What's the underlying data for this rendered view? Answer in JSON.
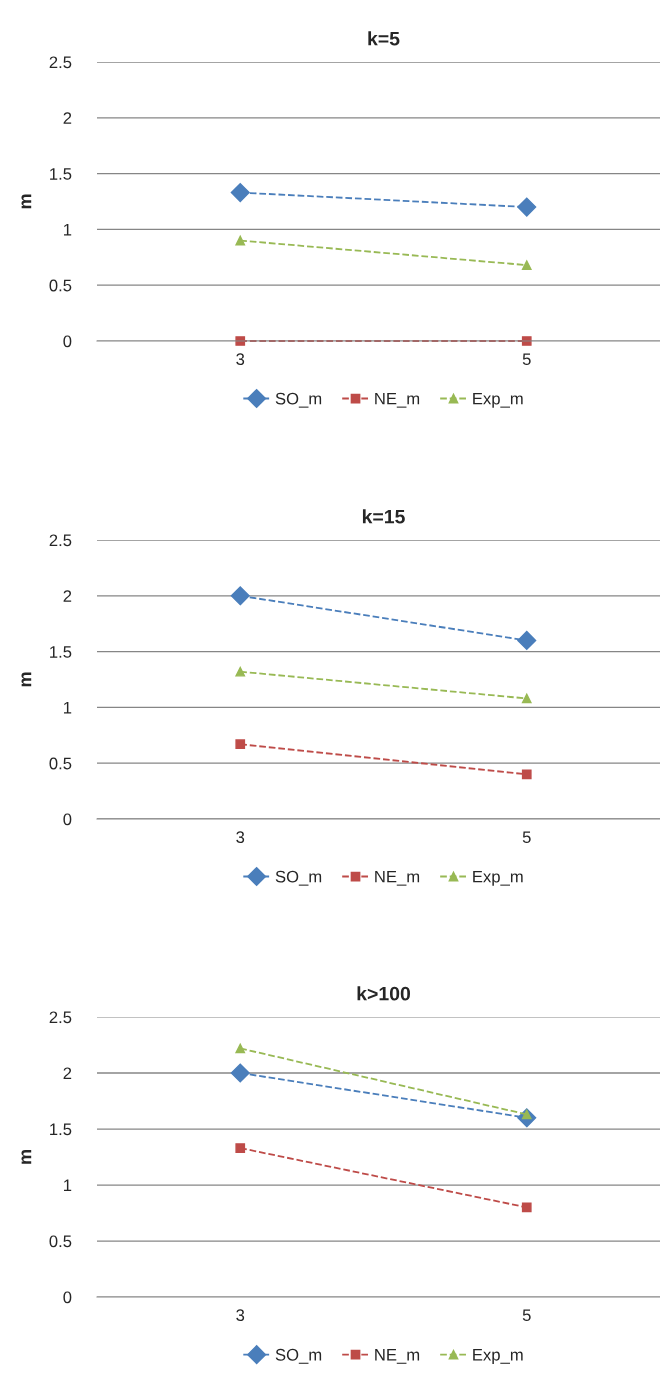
{
  "chart_data": [
    {
      "type": "line",
      "title": "k=5",
      "ylabel": "m",
      "categories": [
        "3",
        "5"
      ],
      "ylim": [
        0,
        2.5
      ],
      "yticks": [
        0,
        0.5,
        1,
        1.5,
        2,
        2.5
      ],
      "grid": "y",
      "legend": "bottom",
      "line_style": "dashed",
      "series": [
        {
          "name": "SO_m",
          "color": "#4a7ebb",
          "marker": "diamond",
          "values": [
            1.33,
            1.2
          ]
        },
        {
          "name": "NE_m",
          "color": "#be4b48",
          "marker": "square",
          "values": [
            0,
            0
          ]
        },
        {
          "name": "Exp_m",
          "color": "#98b954",
          "marker": "triangle",
          "values": [
            0.9,
            0.68
          ]
        }
      ]
    },
    {
      "type": "line",
      "title": "k=15",
      "ylabel": "m",
      "categories": [
        "3",
        "5"
      ],
      "ylim": [
        0,
        2.5
      ],
      "yticks": [
        0,
        0.5,
        1,
        1.5,
        2,
        2.5
      ],
      "grid": "y",
      "legend": "bottom",
      "line_style": "dashed",
      "series": [
        {
          "name": "SO_m",
          "color": "#4a7ebb",
          "marker": "diamond",
          "values": [
            2,
            1.6
          ]
        },
        {
          "name": "NE_m",
          "color": "#be4b48",
          "marker": "square",
          "values": [
            0.67,
            0.4
          ]
        },
        {
          "name": "Exp_m",
          "color": "#98b954",
          "marker": "triangle",
          "values": [
            1.32,
            1.08
          ]
        }
      ]
    },
    {
      "type": "line",
      "title": "k>100",
      "ylabel": "m",
      "categories": [
        "3",
        "5"
      ],
      "ylim": [
        0,
        2.5
      ],
      "yticks": [
        0,
        0.5,
        1,
        1.5,
        2,
        2.5
      ],
      "grid": "y",
      "legend": "bottom",
      "line_style": "dashed",
      "series": [
        {
          "name": "SO_m",
          "color": "#4a7ebb",
          "marker": "diamond",
          "values": [
            2,
            1.6
          ]
        },
        {
          "name": "NE_m",
          "color": "#be4b48",
          "marker": "square",
          "values": [
            1.33,
            0.8
          ]
        },
        {
          "name": "Exp_m",
          "color": "#98b954",
          "marker": "triangle",
          "values": [
            2.22,
            1.63
          ]
        }
      ]
    }
  ]
}
